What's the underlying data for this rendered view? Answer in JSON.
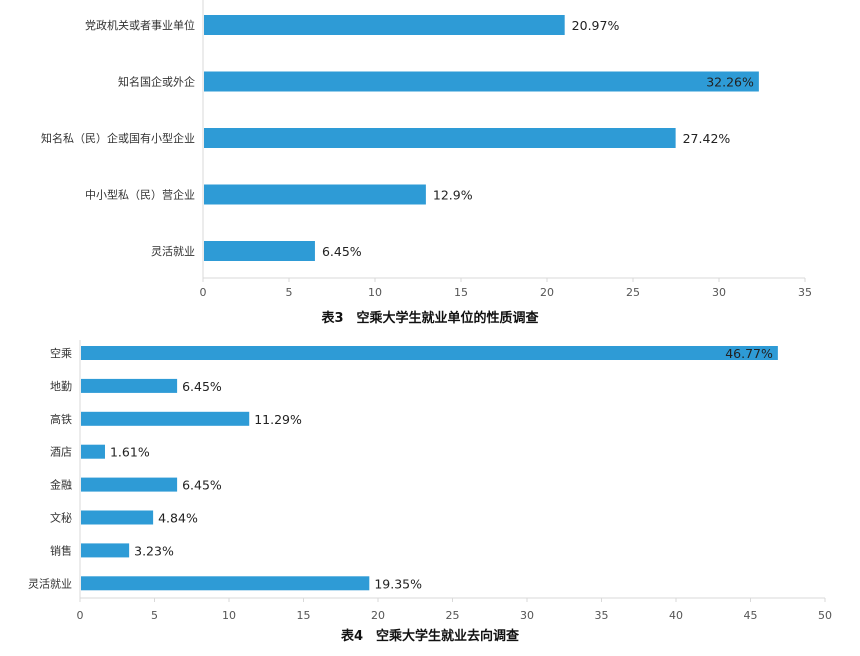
{
  "chart_data": [
    {
      "type": "bar",
      "orientation": "horizontal",
      "title": "表3　空乘大学生就业单位的性质调查",
      "categories": [
        "党政机关或者事业单位",
        "知名国企或外企",
        "知名私（民）企或国有小型企业",
        "中小型私（民）营企业",
        "灵活就业"
      ],
      "values": [
        20.97,
        32.26,
        27.42,
        12.9,
        6.45
      ],
      "value_labels": [
        "20.97%",
        "32.26%",
        "27.42%",
        "12.9%",
        "6.45%"
      ],
      "xticks": [
        "0",
        "5",
        "10",
        "15",
        "20",
        "25",
        "30",
        "35"
      ],
      "xlim": [
        0,
        35
      ],
      "color": "#2e9bd6",
      "grid": false
    },
    {
      "type": "bar",
      "orientation": "horizontal",
      "title": "表4　空乘大学生就业去向调查",
      "categories": [
        "空乘",
        "地勤",
        "高铁",
        "酒店",
        "金融",
        "文秘",
        "销售",
        "灵活就业"
      ],
      "values": [
        46.77,
        6.45,
        11.29,
        1.61,
        6.45,
        4.84,
        3.23,
        19.35
      ],
      "value_labels": [
        "46.77%",
        "6.45%",
        "11.29%",
        "1.61%",
        "6.45%",
        "4.84%",
        "3.23%",
        "19.35%"
      ],
      "xticks": [
        "0",
        "5",
        "10",
        "15",
        "20",
        "25",
        "30",
        "35",
        "40",
        "45",
        "50"
      ],
      "xlim": [
        0,
        50
      ],
      "color": "#2e9bd6",
      "grid": false
    }
  ]
}
